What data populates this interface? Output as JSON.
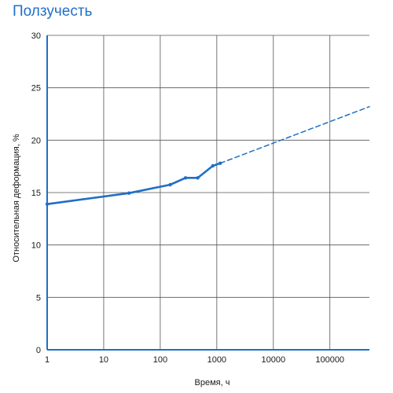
{
  "chart_data": {
    "type": "line",
    "title": "Ползучесть",
    "xlabel": "Время, ч",
    "ylabel": "Относительная деформация, %",
    "x_scale": "log",
    "xlim": [
      1,
      500000
    ],
    "ylim": [
      0,
      30
    ],
    "grid": true,
    "x_tick_values": [
      1,
      10,
      100,
      1000,
      10000,
      100000
    ],
    "x_tick_labels": [
      "1",
      "10",
      "100",
      "1000",
      "10000",
      "100000"
    ],
    "y_tick_values": [
      0,
      5,
      10,
      15,
      20,
      25,
      30
    ],
    "y_tick_labels": [
      "0",
      "5",
      "10",
      "15",
      "20",
      "25",
      "30"
    ],
    "colors": {
      "title": "#1f6fc6",
      "series": "#1f6fc6",
      "grid": "#555555",
      "axis": "#1f6fc6"
    },
    "series": [
      {
        "style": "solid",
        "points": [
          {
            "x": 1,
            "y": 13.9
          },
          {
            "x": 28,
            "y": 14.95
          },
          {
            "x": 150,
            "y": 15.75
          },
          {
            "x": 280,
            "y": 16.4
          },
          {
            "x": 460,
            "y": 16.4
          },
          {
            "x": 850,
            "y": 17.55
          },
          {
            "x": 1150,
            "y": 17.8
          }
        ]
      },
      {
        "style": "dashed",
        "points": [
          {
            "x": 1150,
            "y": 17.8
          },
          {
            "x": 500000,
            "y": 23.2
          }
        ]
      }
    ]
  }
}
